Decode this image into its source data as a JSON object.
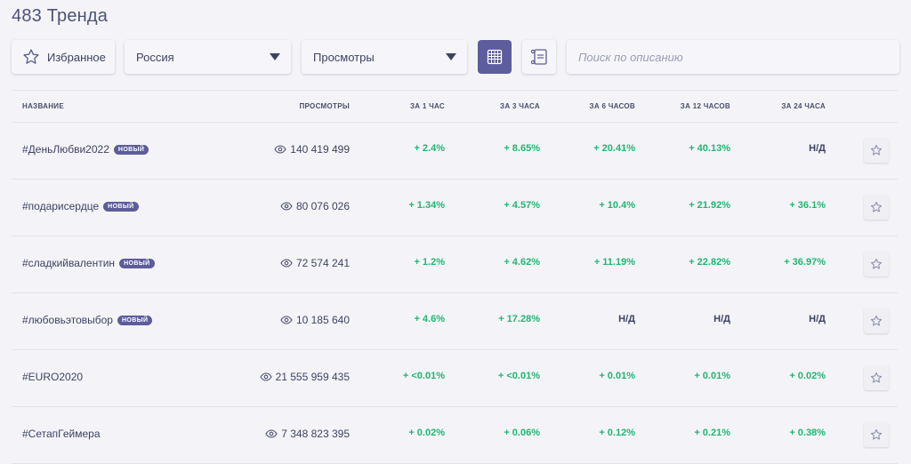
{
  "page": {
    "title": "483 Тренда"
  },
  "toolbar": {
    "favorites_label": "Избранное",
    "country_value": "Россия",
    "metric_value": "Просмотры",
    "search_placeholder": "Поиск по описанию"
  },
  "table": {
    "headers": {
      "name": "НАЗВАНИЕ",
      "views": "ПРОСМОТРЫ",
      "h1": "ЗА 1 ЧАС",
      "h3": "ЗА 3 ЧАСА",
      "h6": "ЗА 6 ЧАСОВ",
      "h12": "ЗА 12 ЧАСОВ",
      "h24": "ЗА 24 ЧАСА"
    },
    "rows": [
      {
        "name": "#ДеньЛюбви2022",
        "badge": "НОВЫЙ",
        "views": "140 419 499",
        "h1": "+ 2.4%",
        "h3": "+ 8.65%",
        "h6": "+ 20.41%",
        "h12": "+ 40.13%",
        "h24": "Н/Д"
      },
      {
        "name": "#подарисердце",
        "badge": "НОВЫЙ",
        "views": "80 076 026",
        "h1": "+ 1.34%",
        "h3": "+ 4.57%",
        "h6": "+ 10.4%",
        "h12": "+ 21.92%",
        "h24": "+ 36.1%"
      },
      {
        "name": "#сладкийвалентин",
        "badge": "НОВЫЙ",
        "views": "72 574 241",
        "h1": "+ 1.2%",
        "h3": "+ 4.62%",
        "h6": "+ 11.19%",
        "h12": "+ 22.82%",
        "h24": "+ 36.97%"
      },
      {
        "name": "#любовьэтовыбор",
        "badge": "НОВЫЙ",
        "views": "10 185 640",
        "h1": "+ 4.6%",
        "h3": "+ 17.28%",
        "h6": "Н/Д",
        "h12": "Н/Д",
        "h24": "Н/Д"
      },
      {
        "name": "#EURO2020",
        "badge": "",
        "views": "21 555 959 435",
        "h1": "+ <0.01%",
        "h3": "+ <0.01%",
        "h6": "+ 0.01%",
        "h12": "+ 0.01%",
        "h24": "+ 0.02%"
      },
      {
        "name": "#СетапГеймера",
        "badge": "",
        "views": "7 348 823 395",
        "h1": "+ 0.02%",
        "h3": "+ 0.06%",
        "h6": "+ 0.12%",
        "h12": "+ 0.21%",
        "h24": "+ 0.38%"
      }
    ]
  },
  "icons": {
    "favorites": "star-icon",
    "grid_view": "grid-icon",
    "list_view": "list-icon",
    "views": "eye-icon",
    "row_favorite": "star-icon"
  },
  "colors": {
    "accent": "#5d5c9c",
    "positive": "#1fb673",
    "text": "#3e4262",
    "background": "#f4f4f8"
  }
}
